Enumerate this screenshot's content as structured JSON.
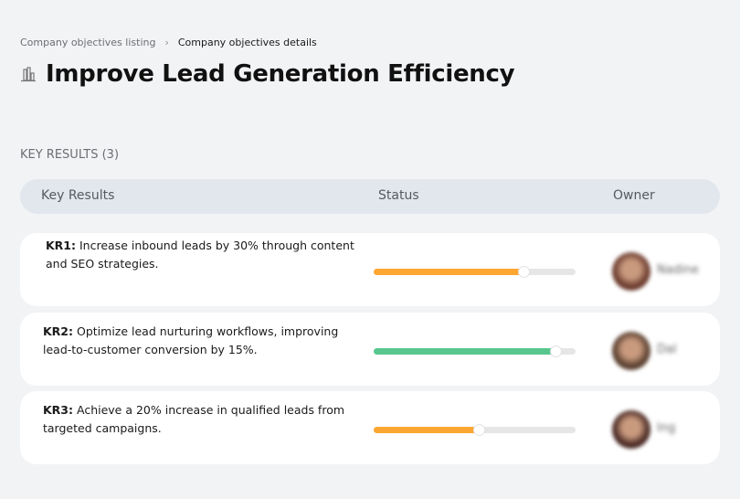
{
  "breadcrumb": {
    "parent": "Company objectives listing",
    "separator": "›",
    "current": "Company objectives details"
  },
  "page": {
    "title": "Improve Lead Generation Efficiency",
    "icon": "building-chart-icon"
  },
  "section": {
    "label": "KEY RESULTS (3)"
  },
  "table": {
    "headers": [
      "Key Results",
      "Status",
      "Owner"
    ],
    "rows": [
      {
        "id": "KR1:",
        "text": " Increase inbound leads by 30% through content and SEO strategies.",
        "progress": 74,
        "color": "#fda732",
        "owner": "Nadine",
        "avatar_color": "#6b3b2e"
      },
      {
        "id": "KR2:",
        "text": " Optimize lead nurturing workflows, improving lead-to-customer conversion by 15%.",
        "progress": 90,
        "color": "#58c78e",
        "owner": "Dal",
        "avatar_color": "#5a4030"
      },
      {
        "id": "KR3:",
        "text": " Achieve a 20% increase in qualified leads from targeted campaigns.",
        "progress": 52,
        "color": "#fda732",
        "owner": "Ing",
        "avatar_color": "#4a2a25"
      }
    ]
  }
}
